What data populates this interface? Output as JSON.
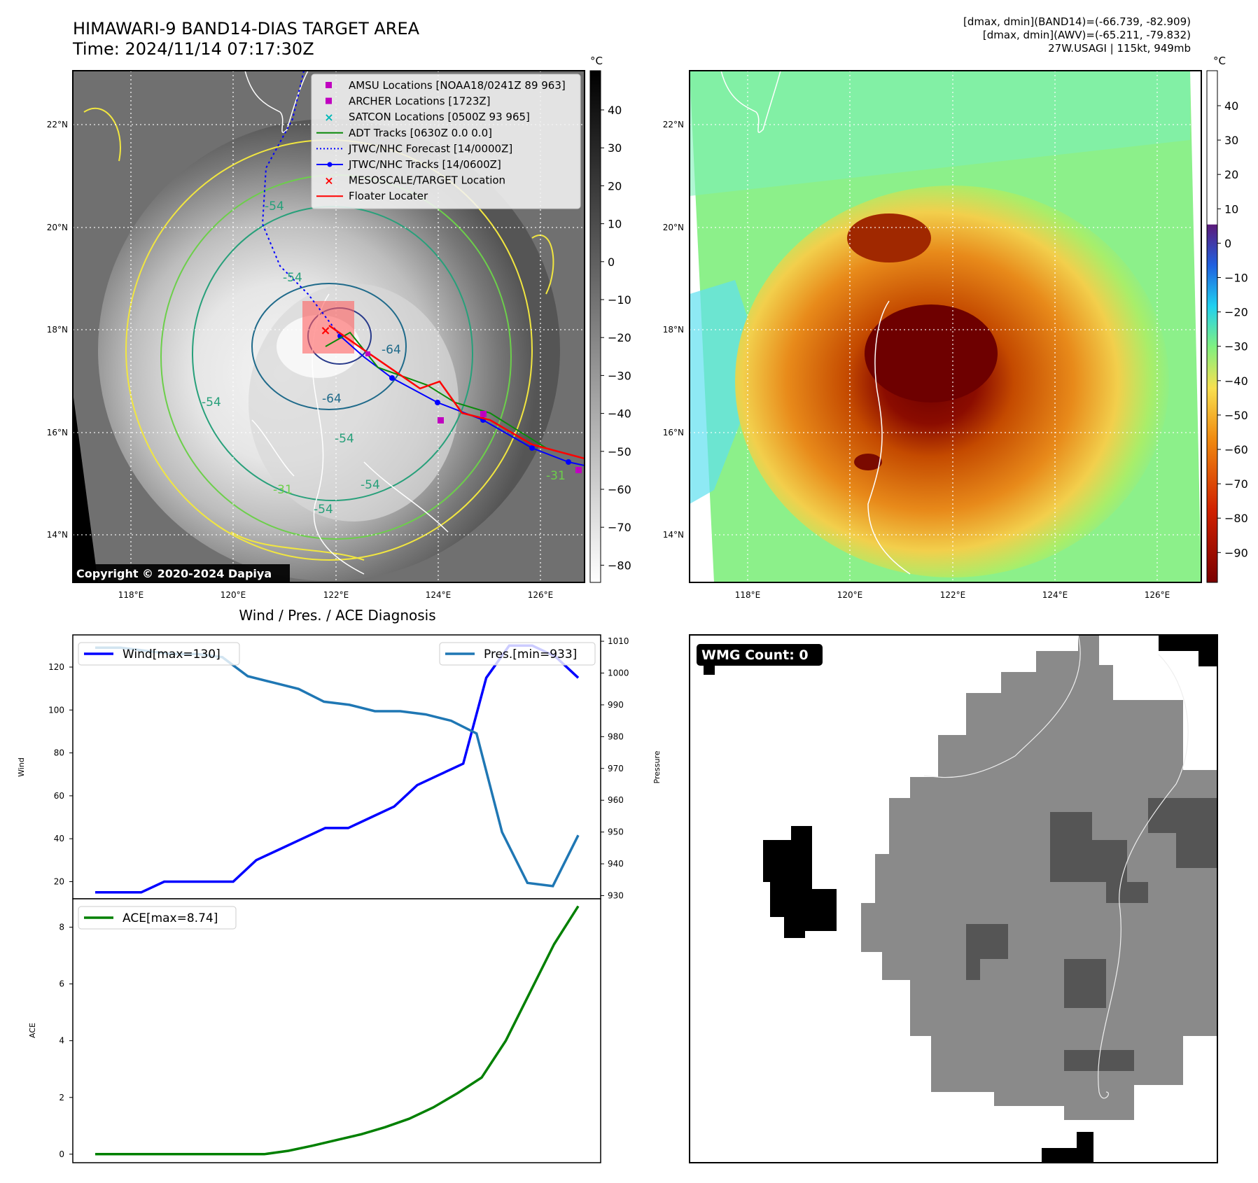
{
  "header": {
    "title_line1": "HIMAWARI-9 BAND14-DIAS TARGET AREA",
    "title_line2": "Time: 2024/11/14 07:17:30Z",
    "info_line1": "[dmax, dmin](BAND14)=(-66.739, -82.909)",
    "info_line2": "[dmax, dmin](AWV)=(-65.211, -79.832)",
    "info_line3": "27W.USAGI | 115kt, 949mb"
  },
  "copyright": "Copyright © 2020-2024 Dapiya",
  "map": {
    "lon_ticks": [
      "118°E",
      "120°E",
      "122°E",
      "124°E",
      "126°E"
    ],
    "lat_ticks": [
      "22°N",
      "20°N",
      "18°N",
      "16°N",
      "14°N"
    ],
    "contour_labels": [
      "-54",
      "-54",
      "-64",
      "-54",
      "-54",
      "-54",
      "-31",
      "-31",
      "-54",
      "-64"
    ],
    "legend": [
      {
        "label": "AMSU Locations [NOAA18/0241Z 89 963]",
        "color": "#c000c0",
        "marker": "square"
      },
      {
        "label": "ARCHER Locations [1723Z]",
        "color": "#c000c0",
        "marker": "square"
      },
      {
        "label": "SATCON Locations [0500Z 93 965]",
        "color": "#00b8b8",
        "marker": "x"
      },
      {
        "label": "ADT Tracks [0630Z 0.0 0.0]",
        "color": "#0a8a0a",
        "marker": "line"
      },
      {
        "label": "JTWC/NHC Forecast [14/0000Z]",
        "color": "#0000ff",
        "marker": "dotted"
      },
      {
        "label": "JTWC/NHC Tracks [14/0600Z]",
        "color": "#0000ff",
        "marker": "line-dot"
      },
      {
        "label": "MESOSCALE/TARGET Location",
        "color": "#ff0000",
        "marker": "x"
      },
      {
        "label": "Floater Locater",
        "color": "#ff0000",
        "marker": "line"
      }
    ]
  },
  "colorbar_gray": {
    "unit": "°C",
    "ticks": [
      "40",
      "30",
      "20",
      "10",
      "0",
      "−10",
      "−20",
      "−30",
      "−40",
      "−50",
      "−60",
      "−70",
      "−80"
    ]
  },
  "colorbar_color": {
    "unit": "°C",
    "ticks": [
      "40",
      "30",
      "20",
      "10",
      "0",
      "−10",
      "−20",
      "−30",
      "−40",
      "−50",
      "−60",
      "−70",
      "−80",
      "−90"
    ]
  },
  "wmg": {
    "label": "WMG Count: 0"
  },
  "chart_data": [
    {
      "type": "line",
      "title": "Wind / Pres. / ACE Diagnosis",
      "ylabel": "Wind",
      "y2label": "Pressure",
      "ylim": [
        12,
        135
      ],
      "y2lim": [
        929,
        1012
      ],
      "yticks": [
        "20",
        "40",
        "60",
        "80",
        "100",
        "120"
      ],
      "y2ticks": [
        "930",
        "940",
        "950",
        "960",
        "970",
        "980",
        "990",
        "1000",
        "1010"
      ],
      "series": [
        {
          "name": "Wind[max=130]",
          "color": "#0000ff",
          "axis": "left",
          "values": [
            15,
            15,
            15,
            20,
            20,
            20,
            20,
            30,
            35,
            40,
            45,
            45,
            50,
            55,
            65,
            70,
            75,
            115,
            130,
            130,
            125,
            115
          ]
        },
        {
          "name": "Pres.[min=933]",
          "color": "#1f77b4",
          "axis": "right",
          "values": [
            1008,
            1008,
            1007,
            1006,
            1006,
            1005,
            999,
            997,
            995,
            991,
            990,
            988,
            988,
            987,
            985,
            981,
            950,
            934,
            933,
            949
          ]
        }
      ]
    },
    {
      "type": "line",
      "ylabel": "ACE",
      "ylim": [
        -0.3,
        9.0
      ],
      "yticks": [
        "0",
        "2",
        "4",
        "6",
        "8"
      ],
      "series": [
        {
          "name": "ACE[max=8.74]",
          "color": "#008000",
          "values": [
            0,
            0,
            0,
            0,
            0,
            0,
            0,
            0,
            0.12,
            0.3,
            0.5,
            0.7,
            0.95,
            1.25,
            1.65,
            2.15,
            2.7,
            4.0,
            5.7,
            7.4,
            8.74
          ]
        }
      ]
    }
  ]
}
